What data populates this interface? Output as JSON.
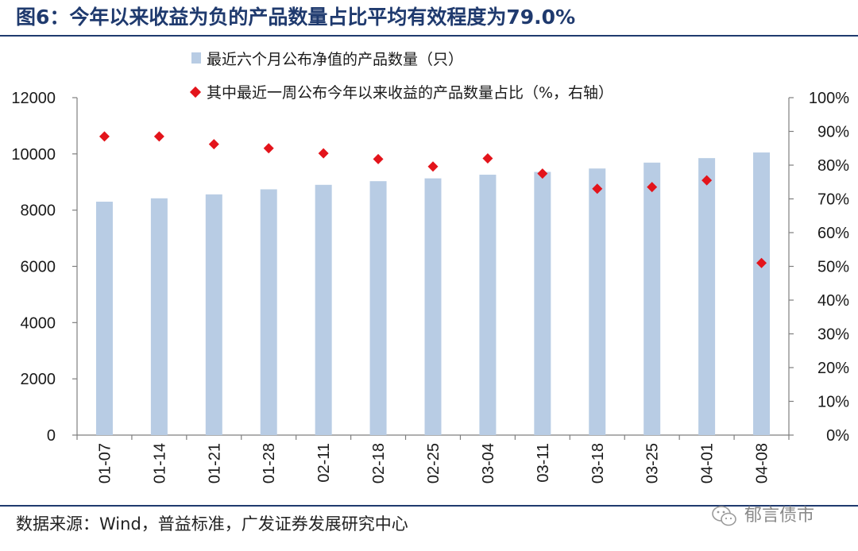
{
  "title": "图6：今年以来收益为负的产品数量占比平均有效程度为79.0%",
  "source": "数据来源：Wind，普益标准，广发证券发展研究中心",
  "watermark": "郁言债市",
  "colors": {
    "bar": "#b8cce4",
    "marker": "#e3141b",
    "title": "#1f3a6e"
  },
  "chart_data": {
    "type": "bar+scatter",
    "categories": [
      "01-07",
      "01-14",
      "01-21",
      "01-28",
      "02-11",
      "02-18",
      "02-25",
      "03-04",
      "03-11",
      "03-18",
      "03-25",
      "04-01",
      "04-08"
    ],
    "series": [
      {
        "name": "最近六个月公布净值的产品数量（只）",
        "type": "bar",
        "axis": "left",
        "values": [
          8300,
          8420,
          8560,
          8740,
          8900,
          9030,
          9130,
          9260,
          9360,
          9480,
          9690,
          9850,
          10050
        ]
      },
      {
        "name": "其中最近一周公布今年以来收益的产品数量占比（%，右轴）",
        "type": "scatter",
        "axis": "right",
        "values": [
          88.5,
          88.5,
          86.2,
          85.0,
          83.5,
          81.8,
          79.6,
          82.0,
          77.5,
          73.0,
          73.5,
          75.5,
          51.0
        ]
      }
    ],
    "left_axis": {
      "min": 0,
      "max": 12000,
      "ticks": [
        "0",
        "2000",
        "4000",
        "6000",
        "8000",
        "10000",
        "12000"
      ]
    },
    "right_axis": {
      "min": 0,
      "max": 100,
      "ticks": [
        "0%",
        "10%",
        "20%",
        "30%",
        "40%",
        "50%",
        "60%",
        "70%",
        "80%",
        "90%",
        "100%"
      ]
    },
    "legend_position": "top-center"
  }
}
